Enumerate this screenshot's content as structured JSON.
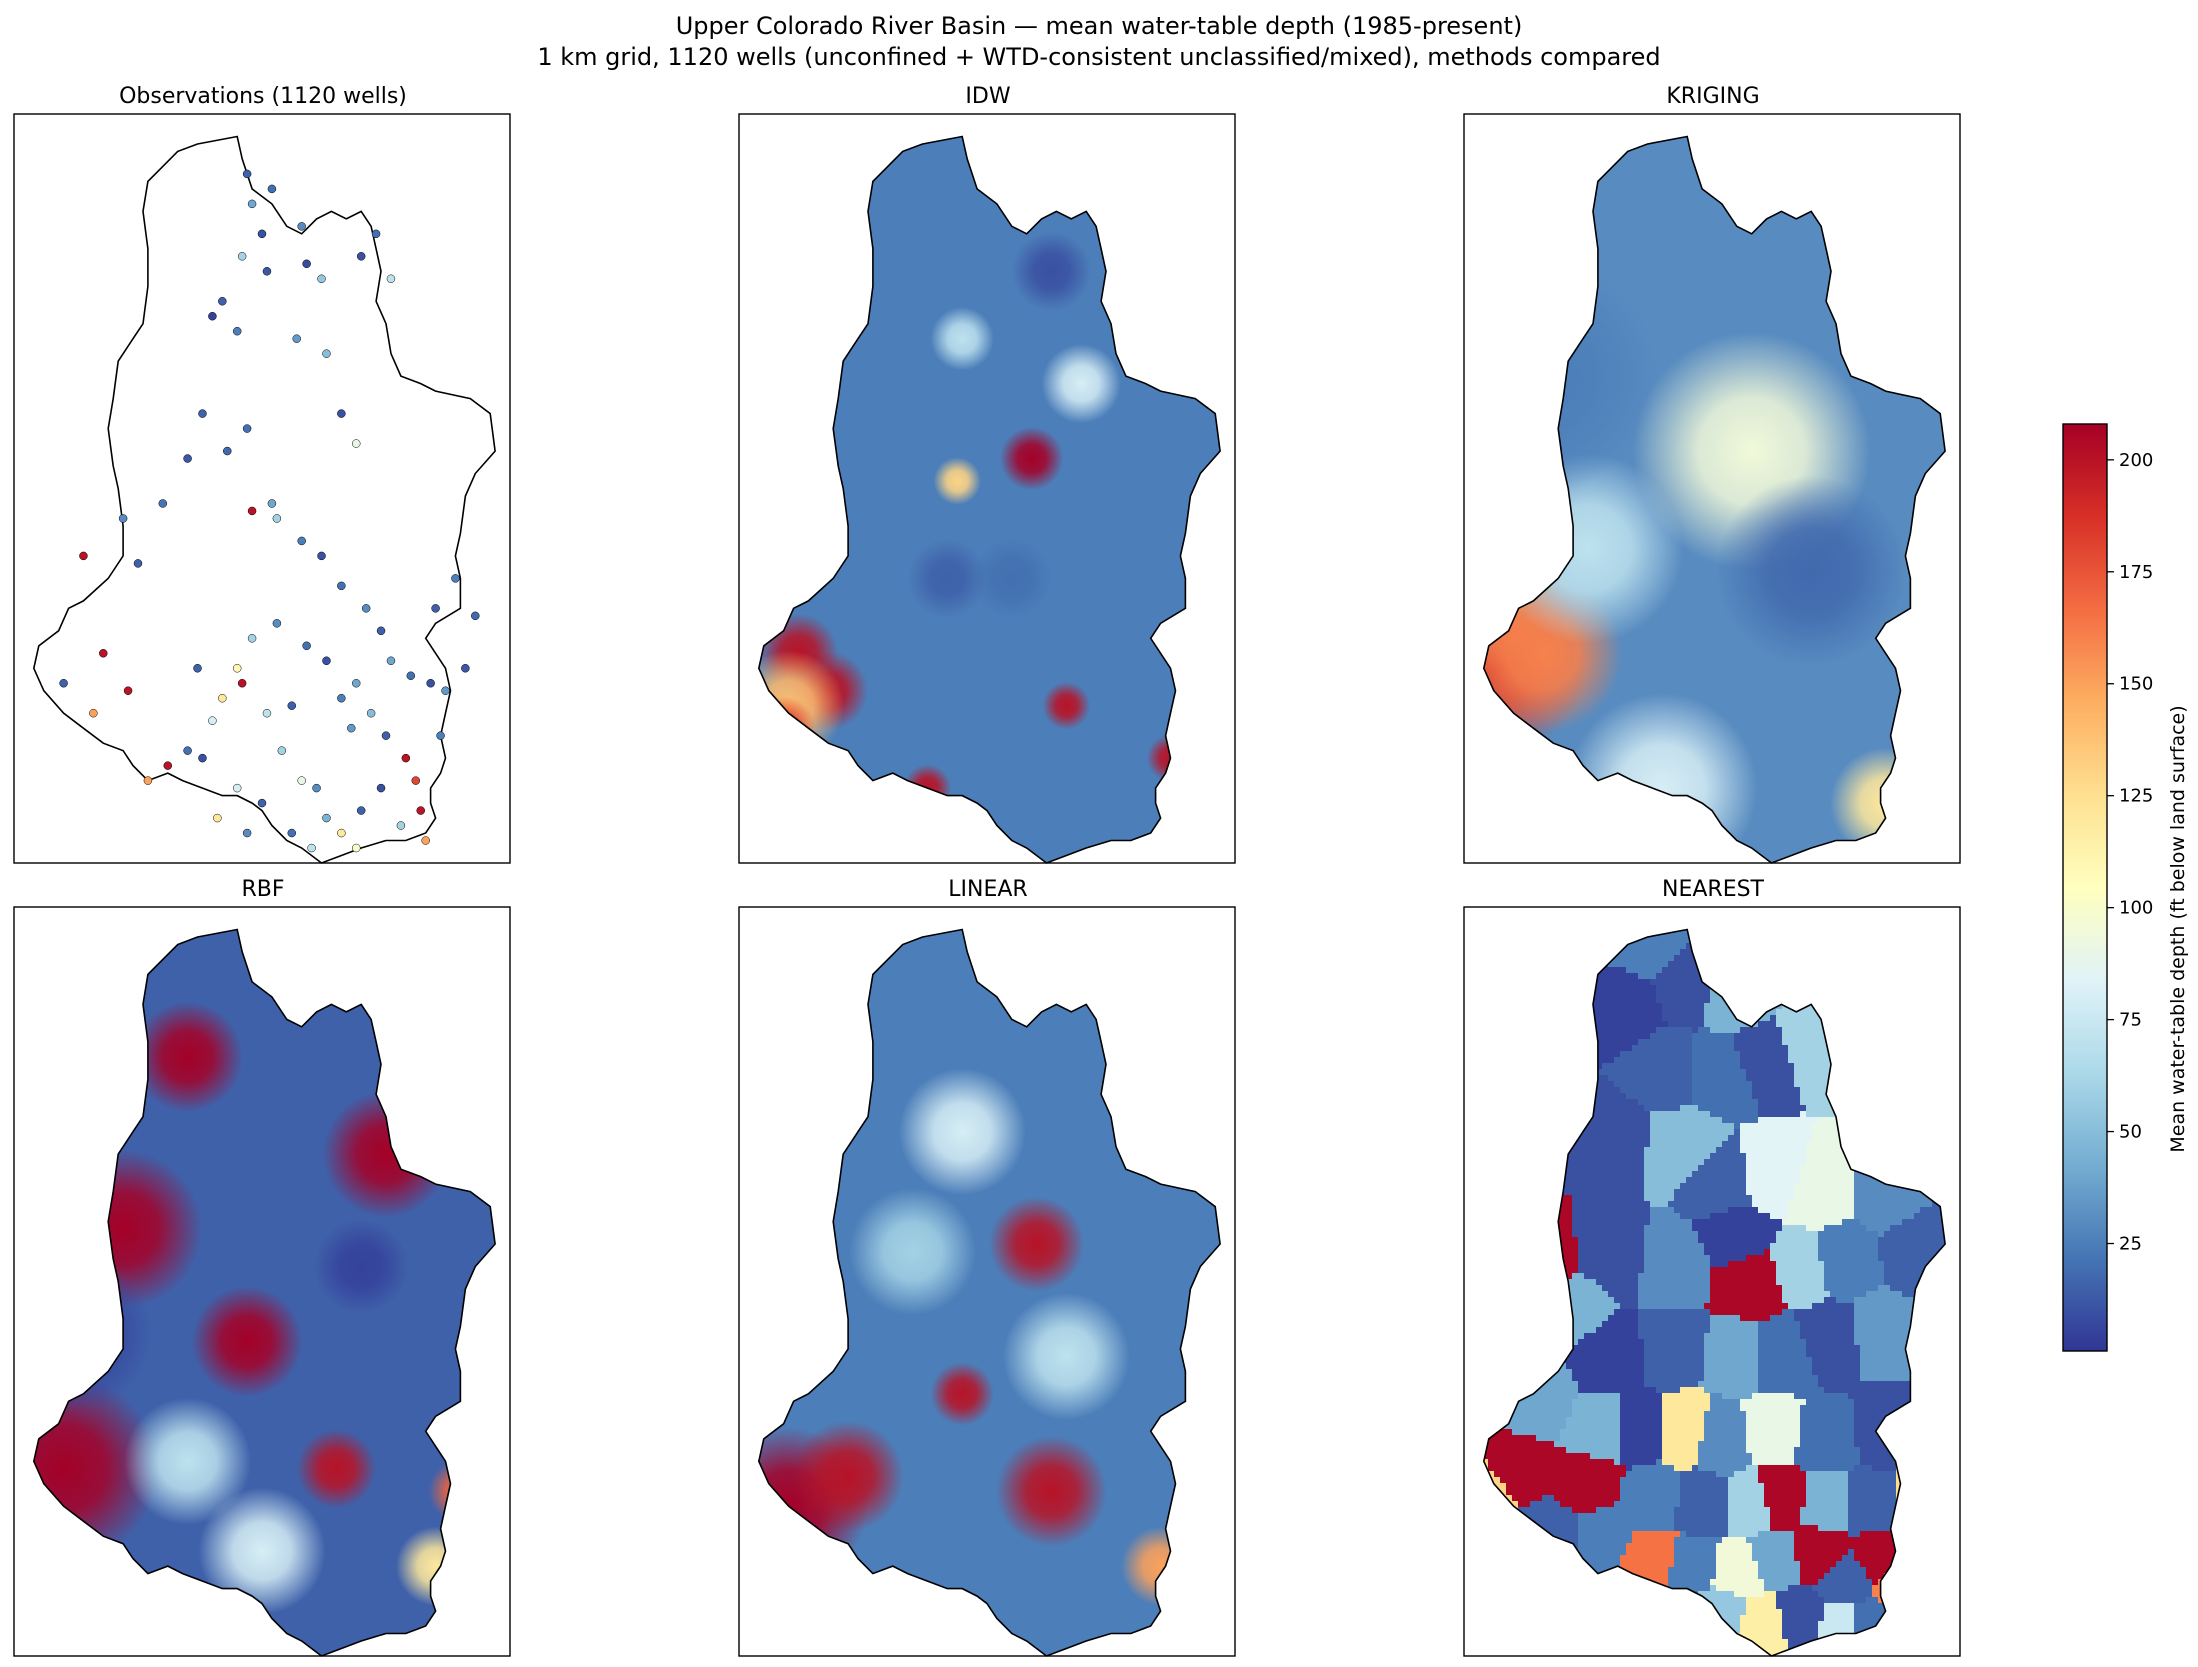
{
  "chart_data": {
    "type": "heatmap",
    "title_line1": "Upper Colorado River Basin — mean water-table depth (1985-present)",
    "title_line2": "1 km grid, 1120 wells (unconfined + WTD-consistent unclassified/mixed), methods compared",
    "colormap": "RdYlBu_r",
    "panels": [
      {
        "id": "obs",
        "title": "Observations (1120 wells)",
        "kind": "points",
        "points": [
          [
            0.47,
            0.08,
            15
          ],
          [
            0.48,
            0.12,
            40
          ],
          [
            0.52,
            0.1,
            20
          ],
          [
            0.5,
            0.16,
            10
          ],
          [
            0.46,
            0.19,
            60
          ],
          [
            0.51,
            0.21,
            12
          ],
          [
            0.58,
            0.15,
            30
          ],
          [
            0.59,
            0.2,
            8
          ],
          [
            0.62,
            0.22,
            55
          ],
          [
            0.7,
            0.19,
            10
          ],
          [
            0.73,
            0.16,
            20
          ],
          [
            0.76,
            0.22,
            70
          ],
          [
            0.42,
            0.25,
            15
          ],
          [
            0.4,
            0.27,
            5
          ],
          [
            0.45,
            0.29,
            25
          ],
          [
            0.57,
            0.3,
            35
          ],
          [
            0.63,
            0.32,
            50
          ],
          [
            0.66,
            0.4,
            10
          ],
          [
            0.69,
            0.44,
            90
          ],
          [
            0.47,
            0.42,
            20
          ],
          [
            0.43,
            0.45,
            18
          ],
          [
            0.38,
            0.4,
            15
          ],
          [
            0.35,
            0.46,
            12
          ],
          [
            0.52,
            0.52,
            40
          ],
          [
            0.48,
            0.53,
            200
          ],
          [
            0.53,
            0.54,
            60
          ],
          [
            0.3,
            0.52,
            22
          ],
          [
            0.22,
            0.54,
            30
          ],
          [
            0.14,
            0.59,
            200
          ],
          [
            0.25,
            0.6,
            15
          ],
          [
            0.58,
            0.57,
            25
          ],
          [
            0.62,
            0.59,
            10
          ],
          [
            0.66,
            0.63,
            20
          ],
          [
            0.71,
            0.66,
            30
          ],
          [
            0.74,
            0.69,
            15
          ],
          [
            0.76,
            0.73,
            40
          ],
          [
            0.8,
            0.75,
            20
          ],
          [
            0.84,
            0.76,
            10
          ],
          [
            0.87,
            0.77,
            35
          ],
          [
            0.91,
            0.74,
            12
          ],
          [
            0.93,
            0.67,
            18
          ],
          [
            0.89,
            0.62,
            25
          ],
          [
            0.85,
            0.66,
            14
          ],
          [
            0.53,
            0.68,
            30
          ],
          [
            0.48,
            0.7,
            60
          ],
          [
            0.45,
            0.74,
            110
          ],
          [
            0.46,
            0.76,
            200
          ],
          [
            0.42,
            0.78,
            120
          ],
          [
            0.4,
            0.81,
            80
          ],
          [
            0.37,
            0.74,
            15
          ],
          [
            0.59,
            0.71,
            20
          ],
          [
            0.63,
            0.73,
            10
          ],
          [
            0.66,
            0.78,
            25
          ],
          [
            0.68,
            0.82,
            35
          ],
          [
            0.69,
            0.76,
            40
          ],
          [
            0.56,
            0.79,
            15
          ],
          [
            0.51,
            0.8,
            70
          ],
          [
            0.18,
            0.72,
            200
          ],
          [
            0.23,
            0.77,
            200
          ],
          [
            0.16,
            0.8,
            150
          ],
          [
            0.1,
            0.76,
            15
          ],
          [
            0.35,
            0.85,
            20
          ],
          [
            0.38,
            0.86,
            10
          ],
          [
            0.31,
            0.87,
            200
          ],
          [
            0.27,
            0.89,
            150
          ],
          [
            0.54,
            0.85,
            60
          ],
          [
            0.58,
            0.89,
            90
          ],
          [
            0.61,
            0.9,
            30
          ],
          [
            0.63,
            0.94,
            45
          ],
          [
            0.66,
            0.96,
            120
          ],
          [
            0.7,
            0.93,
            15
          ],
          [
            0.74,
            0.9,
            10
          ],
          [
            0.79,
            0.86,
            200
          ],
          [
            0.81,
            0.89,
            180
          ],
          [
            0.82,
            0.93,
            200
          ],
          [
            0.78,
            0.95,
            60
          ],
          [
            0.83,
            0.97,
            150
          ],
          [
            0.69,
            0.98,
            100
          ],
          [
            0.6,
            0.98,
            70
          ],
          [
            0.56,
            0.96,
            20
          ],
          [
            0.5,
            0.92,
            15
          ],
          [
            0.45,
            0.9,
            80
          ],
          [
            0.41,
            0.94,
            120
          ],
          [
            0.47,
            0.96,
            30
          ],
          [
            0.86,
            0.83,
            25
          ],
          [
            0.75,
            0.83,
            15
          ],
          [
            0.72,
            0.8,
            50
          ]
        ]
      },
      {
        "id": "idw",
        "title": "IDW",
        "kind": "smooth",
        "background": 25,
        "sites": [
          [
            0.12,
            0.72,
            200,
            0.05
          ],
          [
            0.18,
            0.77,
            200,
            0.05
          ],
          [
            0.1,
            0.79,
            140,
            0.07
          ],
          [
            0.09,
            0.82,
            180,
            0.04
          ],
          [
            0.59,
            0.46,
            210,
            0.04
          ],
          [
            0.87,
            0.86,
            200,
            0.03
          ],
          [
            0.92,
            0.91,
            160,
            0.04
          ],
          [
            0.38,
            0.9,
            200,
            0.03
          ],
          [
            0.66,
            0.79,
            200,
            0.03
          ],
          [
            0.44,
            0.49,
            130,
            0.03
          ],
          [
            0.45,
            0.3,
            70,
            0.04
          ],
          [
            0.69,
            0.36,
            80,
            0.05
          ],
          [
            0.55,
            0.62,
            20,
            0.05
          ],
          [
            0.42,
            0.62,
            15,
            0.05
          ],
          [
            0.63,
            0.21,
            10,
            0.05
          ]
        ]
      },
      {
        "id": "kriging",
        "title": "KRIGING",
        "kind": "smooth",
        "background": 30,
        "sites": [
          [
            0.06,
            0.73,
            185,
            0.12
          ],
          [
            0.02,
            0.62,
            150,
            0.12
          ],
          [
            0.16,
            0.72,
            160,
            0.1
          ],
          [
            0.58,
            0.45,
            95,
            0.15
          ],
          [
            0.85,
            0.92,
            120,
            0.07
          ],
          [
            0.4,
            0.9,
            80,
            0.12
          ],
          [
            0.25,
            0.58,
            70,
            0.12
          ],
          [
            0.15,
            0.35,
            25,
            0.15
          ],
          [
            0.7,
            0.61,
            18,
            0.12
          ]
        ]
      },
      {
        "id": "rbf",
        "title": "RBF",
        "kind": "smooth",
        "background": 15,
        "sites": [
          [
            0.35,
            0.2,
            220,
            0.07
          ],
          [
            0.22,
            0.43,
            220,
            0.1
          ],
          [
            0.1,
            0.75,
            230,
            0.12
          ],
          [
            0.47,
            0.58,
            210,
            0.07
          ],
          [
            0.75,
            0.33,
            210,
            0.08
          ],
          [
            0.65,
            0.75,
            200,
            0.05
          ],
          [
            0.9,
            0.78,
            170,
            0.04
          ],
          [
            0.85,
            0.88,
            120,
            0.05
          ],
          [
            0.12,
            0.57,
            5,
            0.1
          ],
          [
            0.7,
            0.48,
            5,
            0.06
          ],
          [
            0.35,
            0.74,
            70,
            0.08
          ],
          [
            0.5,
            0.86,
            80,
            0.08
          ]
        ]
      },
      {
        "id": "linear",
        "title": "LINEAR",
        "kind": "smooth",
        "background": 25,
        "sites": [
          [
            0.1,
            0.8,
            215,
            0.1
          ],
          [
            0.6,
            0.45,
            200,
            0.06
          ],
          [
            0.63,
            0.78,
            200,
            0.07
          ],
          [
            0.45,
            0.65,
            200,
            0.04
          ],
          [
            0.22,
            0.76,
            200,
            0.07
          ],
          [
            0.85,
            0.88,
            150,
            0.05
          ],
          [
            0.45,
            0.3,
            80,
            0.08
          ],
          [
            0.66,
            0.6,
            70,
            0.08
          ],
          [
            0.35,
            0.46,
            60,
            0.08
          ]
        ]
      },
      {
        "id": "nearest",
        "title": "NEAREST",
        "kind": "voronoi",
        "sites": [
          [
            0.37,
            0.05,
            25
          ],
          [
            0.45,
            0.1,
            10
          ],
          [
            0.55,
            0.12,
            45
          ],
          [
            0.6,
            0.2,
            10
          ],
          [
            0.7,
            0.18,
            60
          ],
          [
            0.52,
            0.22,
            20
          ],
          [
            0.41,
            0.22,
            15
          ],
          [
            0.3,
            0.31,
            10
          ],
          [
            0.44,
            0.32,
            50
          ],
          [
            0.52,
            0.37,
            15
          ],
          [
            0.62,
            0.36,
            85
          ],
          [
            0.72,
            0.38,
            90
          ],
          [
            0.85,
            0.38,
            30
          ],
          [
            0.92,
            0.46,
            15
          ],
          [
            0.42,
            0.48,
            30
          ],
          [
            0.55,
            0.44,
            5
          ],
          [
            0.58,
            0.5,
            205
          ],
          [
            0.68,
            0.48,
            60
          ],
          [
            0.76,
            0.47,
            25
          ],
          [
            0.3,
            0.47,
            10
          ],
          [
            0.22,
            0.53,
            45
          ],
          [
            0.1,
            0.58,
            60
          ],
          [
            0.16,
            0.48,
            205
          ],
          [
            0.3,
            0.6,
            5
          ],
          [
            0.42,
            0.59,
            15
          ],
          [
            0.55,
            0.6,
            40
          ],
          [
            0.64,
            0.6,
            20
          ],
          [
            0.74,
            0.58,
            10
          ],
          [
            0.84,
            0.57,
            35
          ],
          [
            0.44,
            0.7,
            120
          ],
          [
            0.35,
            0.7,
            5
          ],
          [
            0.28,
            0.7,
            45
          ],
          [
            0.52,
            0.71,
            30
          ],
          [
            0.62,
            0.7,
            90
          ],
          [
            0.73,
            0.71,
            20
          ],
          [
            0.85,
            0.7,
            10
          ],
          [
            0.14,
            0.66,
            40
          ],
          [
            0.1,
            0.75,
            205
          ],
          [
            0.25,
            0.77,
            205
          ],
          [
            0.04,
            0.78,
            130
          ],
          [
            0.38,
            0.79,
            25
          ],
          [
            0.48,
            0.8,
            15
          ],
          [
            0.58,
            0.8,
            60
          ],
          [
            0.64,
            0.79,
            205
          ],
          [
            0.73,
            0.8,
            45
          ],
          [
            0.83,
            0.8,
            15
          ],
          [
            0.92,
            0.79,
            125
          ],
          [
            0.38,
            0.87,
            165
          ],
          [
            0.46,
            0.88,
            25
          ],
          [
            0.55,
            0.89,
            95
          ],
          [
            0.63,
            0.87,
            40
          ],
          [
            0.71,
            0.86,
            205
          ],
          [
            0.77,
            0.9,
            15
          ],
          [
            0.84,
            0.87,
            205
          ],
          [
            0.88,
            0.91,
            160
          ],
          [
            0.28,
            0.84,
            25
          ],
          [
            0.18,
            0.84,
            15
          ],
          [
            0.6,
            0.96,
            115
          ],
          [
            0.68,
            0.95,
            10
          ],
          [
            0.76,
            0.96,
            75
          ],
          [
            0.82,
            0.96,
            20
          ],
          [
            0.52,
            0.94,
            55
          ],
          [
            0.44,
            0.95,
            20
          ],
          [
            0.35,
            0.94,
            10
          ],
          [
            0.32,
            0.13,
            5
          ]
        ]
      }
    ],
    "colorbar": {
      "label": "Mean water-table depth (ft below land surface)",
      "vmin": 1,
      "vmax": 208,
      "ticks": [
        25,
        50,
        75,
        100,
        125,
        150,
        175,
        200
      ]
    }
  }
}
